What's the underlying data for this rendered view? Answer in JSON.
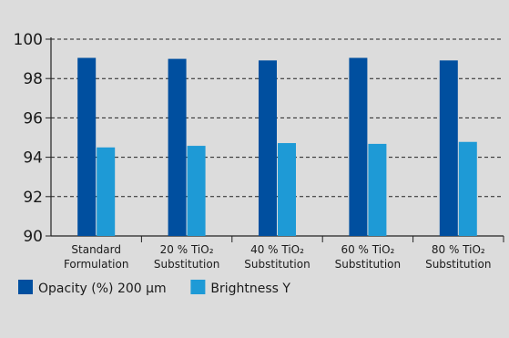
{
  "chart_data": {
    "type": "bar",
    "categories": [
      [
        "Standard",
        "Formulation"
      ],
      [
        "20 % TiO₂",
        "Substitution"
      ],
      [
        "40 % TiO₂",
        "Substitution"
      ],
      [
        "60 % TiO₂",
        "Substitution"
      ],
      [
        "80 % TiO₂",
        "Substitution"
      ]
    ],
    "series": [
      {
        "name": "Opacity (%) 200 µm",
        "values": [
          99.05,
          99.0,
          98.92,
          99.05,
          98.92
        ],
        "color": "#004f9f"
      },
      {
        "name": "Brightness Y",
        "values": [
          94.5,
          94.58,
          94.72,
          94.68,
          94.78
        ],
        "color": "#1e9ad6"
      }
    ],
    "ylim": [
      90,
      100
    ],
    "yticks": [
      90,
      92,
      94,
      96,
      98,
      100
    ],
    "grid": "dashed horizontal",
    "legend_position": "bottom-left"
  }
}
